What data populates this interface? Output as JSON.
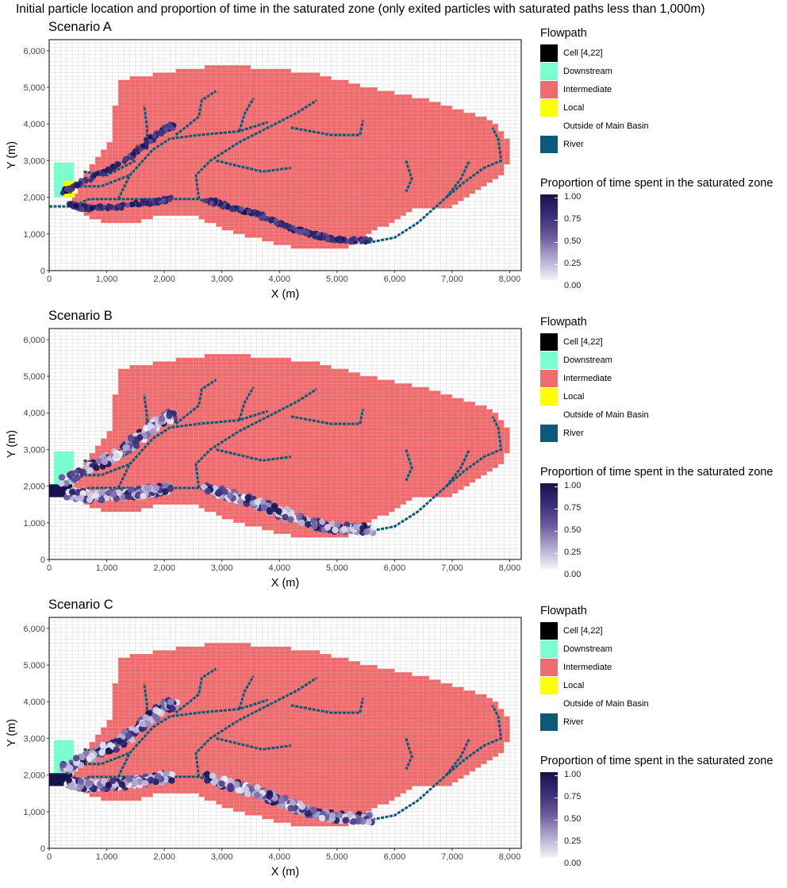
{
  "figure_title": "Initial particle location and proportion of time in the saturated zone (only exited particles with saturated paths less than 1,000m)",
  "legend": {
    "flowpath_title": "Flowpath",
    "flowpath_items": [
      {
        "label": "Cell [4,22]",
        "color": "#000000"
      },
      {
        "label": "Downstream",
        "color": "#7affcd"
      },
      {
        "label": "Intermediate",
        "color": "#ee6b6e"
      },
      {
        "label": "Local",
        "color": "#ffff00"
      },
      {
        "label": "Outside of Main Basin",
        "color": "#ffffff"
      },
      {
        "label": "River",
        "color": "#0c5a78"
      }
    ],
    "colorbar_title": "Proportion of time spent in the saturated zone",
    "colorbar_ticks": [
      "1.00",
      "0.75",
      "0.50",
      "0.25",
      "0.00"
    ],
    "colorbar_low_color": "#f5f3fa",
    "colorbar_high_color": "#17124d"
  },
  "chart_data": [
    {
      "type": "heatmap",
      "title": "Scenario A",
      "xlabel": "X (m)",
      "ylabel": "Y (m)",
      "xlim": [
        0,
        8200
      ],
      "ylim": [
        0,
        6300
      ],
      "xticks": [
        "0",
        "1,000",
        "2,000",
        "3,000",
        "4,000",
        "5,000",
        "6,000",
        "7,000",
        "8,000"
      ],
      "yticks": [
        "0",
        "1,000",
        "2,000",
        "3,000",
        "4,000",
        "5,000",
        "6,000"
      ],
      "grid": true,
      "downstream_zone": true,
      "local_zone": true
    },
    {
      "type": "heatmap",
      "title": "Scenario B",
      "xlabel": "X (m)",
      "ylabel": "Y (m)",
      "xlim": [
        0,
        8200
      ],
      "ylim": [
        0,
        6300
      ],
      "xticks": [
        "0",
        "1,000",
        "2,000",
        "3,000",
        "4,000",
        "5,000",
        "6,000",
        "7,000",
        "8,000"
      ],
      "yticks": [
        "0",
        "1,000",
        "2,000",
        "3,000",
        "4,000",
        "5,000",
        "6,000"
      ],
      "grid": true,
      "downstream_zone": true,
      "local_zone": false
    },
    {
      "type": "heatmap",
      "title": "Scenario C",
      "xlabel": "X (m)",
      "ylabel": "Y (m)",
      "xlim": [
        0,
        8200
      ],
      "ylim": [
        0,
        6300
      ],
      "xticks": [
        "0",
        "1,000",
        "2,000",
        "3,000",
        "4,000",
        "5,000",
        "6,000",
        "7,000",
        "8,000"
      ],
      "yticks": [
        "0",
        "1,000",
        "2,000",
        "3,000",
        "4,000",
        "5,000",
        "6,000"
      ],
      "grid": true,
      "downstream_zone": true,
      "local_zone": false
    }
  ]
}
